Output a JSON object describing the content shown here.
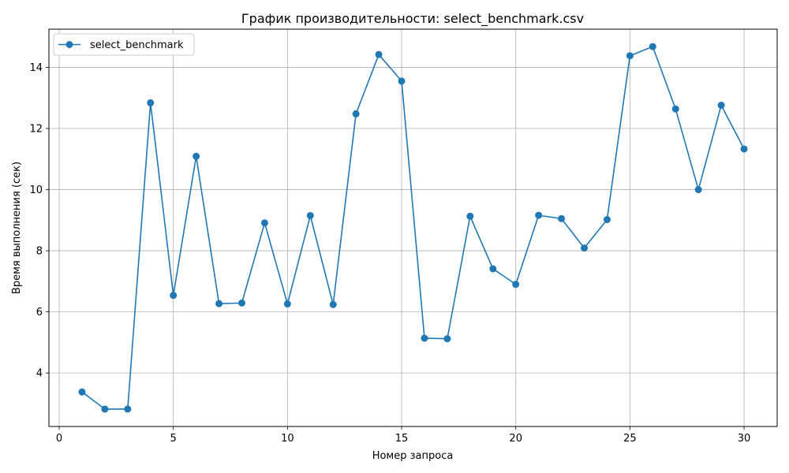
{
  "chart_data": {
    "type": "line",
    "title": "График производительности: select_benchmark.csv",
    "xlabel": "Номер запроса",
    "ylabel": "Время выполнения (сек)",
    "xlim": [
      -0.45,
      31.45
    ],
    "ylim": [
      2.25,
      15.25
    ],
    "xticks": [
      0,
      5,
      10,
      15,
      20,
      25,
      30
    ],
    "yticks": [
      4,
      6,
      8,
      10,
      12,
      14
    ],
    "grid": true,
    "legend_position": "top-left",
    "color": "#1f77b4",
    "series": [
      {
        "name": "select_benchmark",
        "x": [
          1,
          2,
          3,
          4,
          5,
          6,
          7,
          8,
          9,
          10,
          11,
          12,
          13,
          14,
          15,
          16,
          17,
          18,
          19,
          20,
          21,
          22,
          23,
          24,
          25,
          26,
          27,
          28,
          29,
          30
        ],
        "y": [
          3.38,
          2.82,
          2.82,
          12.84,
          6.54,
          11.09,
          6.27,
          6.29,
          8.91,
          6.26,
          9.15,
          6.24,
          12.48,
          14.42,
          13.55,
          5.14,
          5.12,
          9.13,
          7.41,
          6.9,
          9.16,
          9.05,
          8.09,
          9.02,
          14.38,
          14.68,
          12.64,
          10.0,
          12.76,
          11.33
        ]
      }
    ]
  }
}
